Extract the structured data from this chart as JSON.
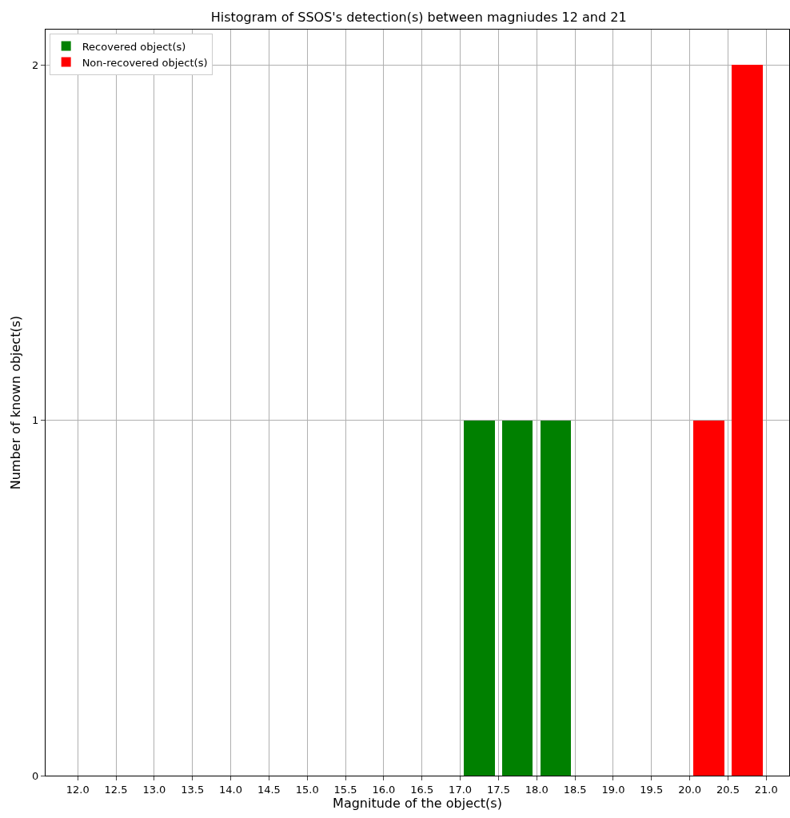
{
  "chart_data": {
    "type": "histogram",
    "title": "Histogram of SSOS's detection(s) between magniudes 12 and 21",
    "xlabel": "Magnitude of the object(s)",
    "ylabel": "Number of known object(s)",
    "bins": [
      12.0,
      12.5,
      13.0,
      13.5,
      14.0,
      14.5,
      15.0,
      15.5,
      16.0,
      16.5,
      17.0,
      17.5,
      18.0,
      18.5,
      19.0,
      19.5,
      20.0,
      20.5,
      21.0
    ],
    "series": [
      {
        "name": "Recovered object(s)",
        "color": "#008000",
        "values": [
          0,
          0,
          0,
          0,
          0,
          0,
          0,
          0,
          0,
          0,
          1,
          1,
          1,
          0,
          0,
          0,
          0,
          0
        ]
      },
      {
        "name": "Non-recovered object(s)",
        "color": "#ff0000",
        "values": [
          0,
          0,
          0,
          0,
          0,
          0,
          0,
          0,
          0,
          0,
          0,
          0,
          0,
          0,
          0,
          0,
          1,
          2
        ]
      }
    ],
    "xlim": [
      11.58,
      21.3
    ],
    "ylim": [
      0,
      2.1
    ],
    "xticks": [
      {
        "value": 12.0,
        "label": "12.0"
      },
      {
        "value": 12.5,
        "label": "12.5"
      },
      {
        "value": 13.0,
        "label": "13.0"
      },
      {
        "value": 13.5,
        "label": "13.5"
      },
      {
        "value": 14.0,
        "label": "14.0"
      },
      {
        "value": 14.5,
        "label": "14.5"
      },
      {
        "value": 15.0,
        "label": "15.0"
      },
      {
        "value": 15.5,
        "label": "15.5"
      },
      {
        "value": 16.0,
        "label": "16.0"
      },
      {
        "value": 16.5,
        "label": "16.5"
      },
      {
        "value": 17.0,
        "label": "17.0"
      },
      {
        "value": 17.5,
        "label": "17.5"
      },
      {
        "value": 18.0,
        "label": "18.0"
      },
      {
        "value": 18.5,
        "label": "18.5"
      },
      {
        "value": 19.0,
        "label": "19.0"
      },
      {
        "value": 19.5,
        "label": "19.5"
      },
      {
        "value": 20.0,
        "label": "20.0"
      },
      {
        "value": 20.5,
        "label": "20.5"
      },
      {
        "value": 21.0,
        "label": "21.0"
      }
    ],
    "yticks": [
      0,
      1,
      2
    ],
    "grid": true,
    "legend": "top left"
  }
}
